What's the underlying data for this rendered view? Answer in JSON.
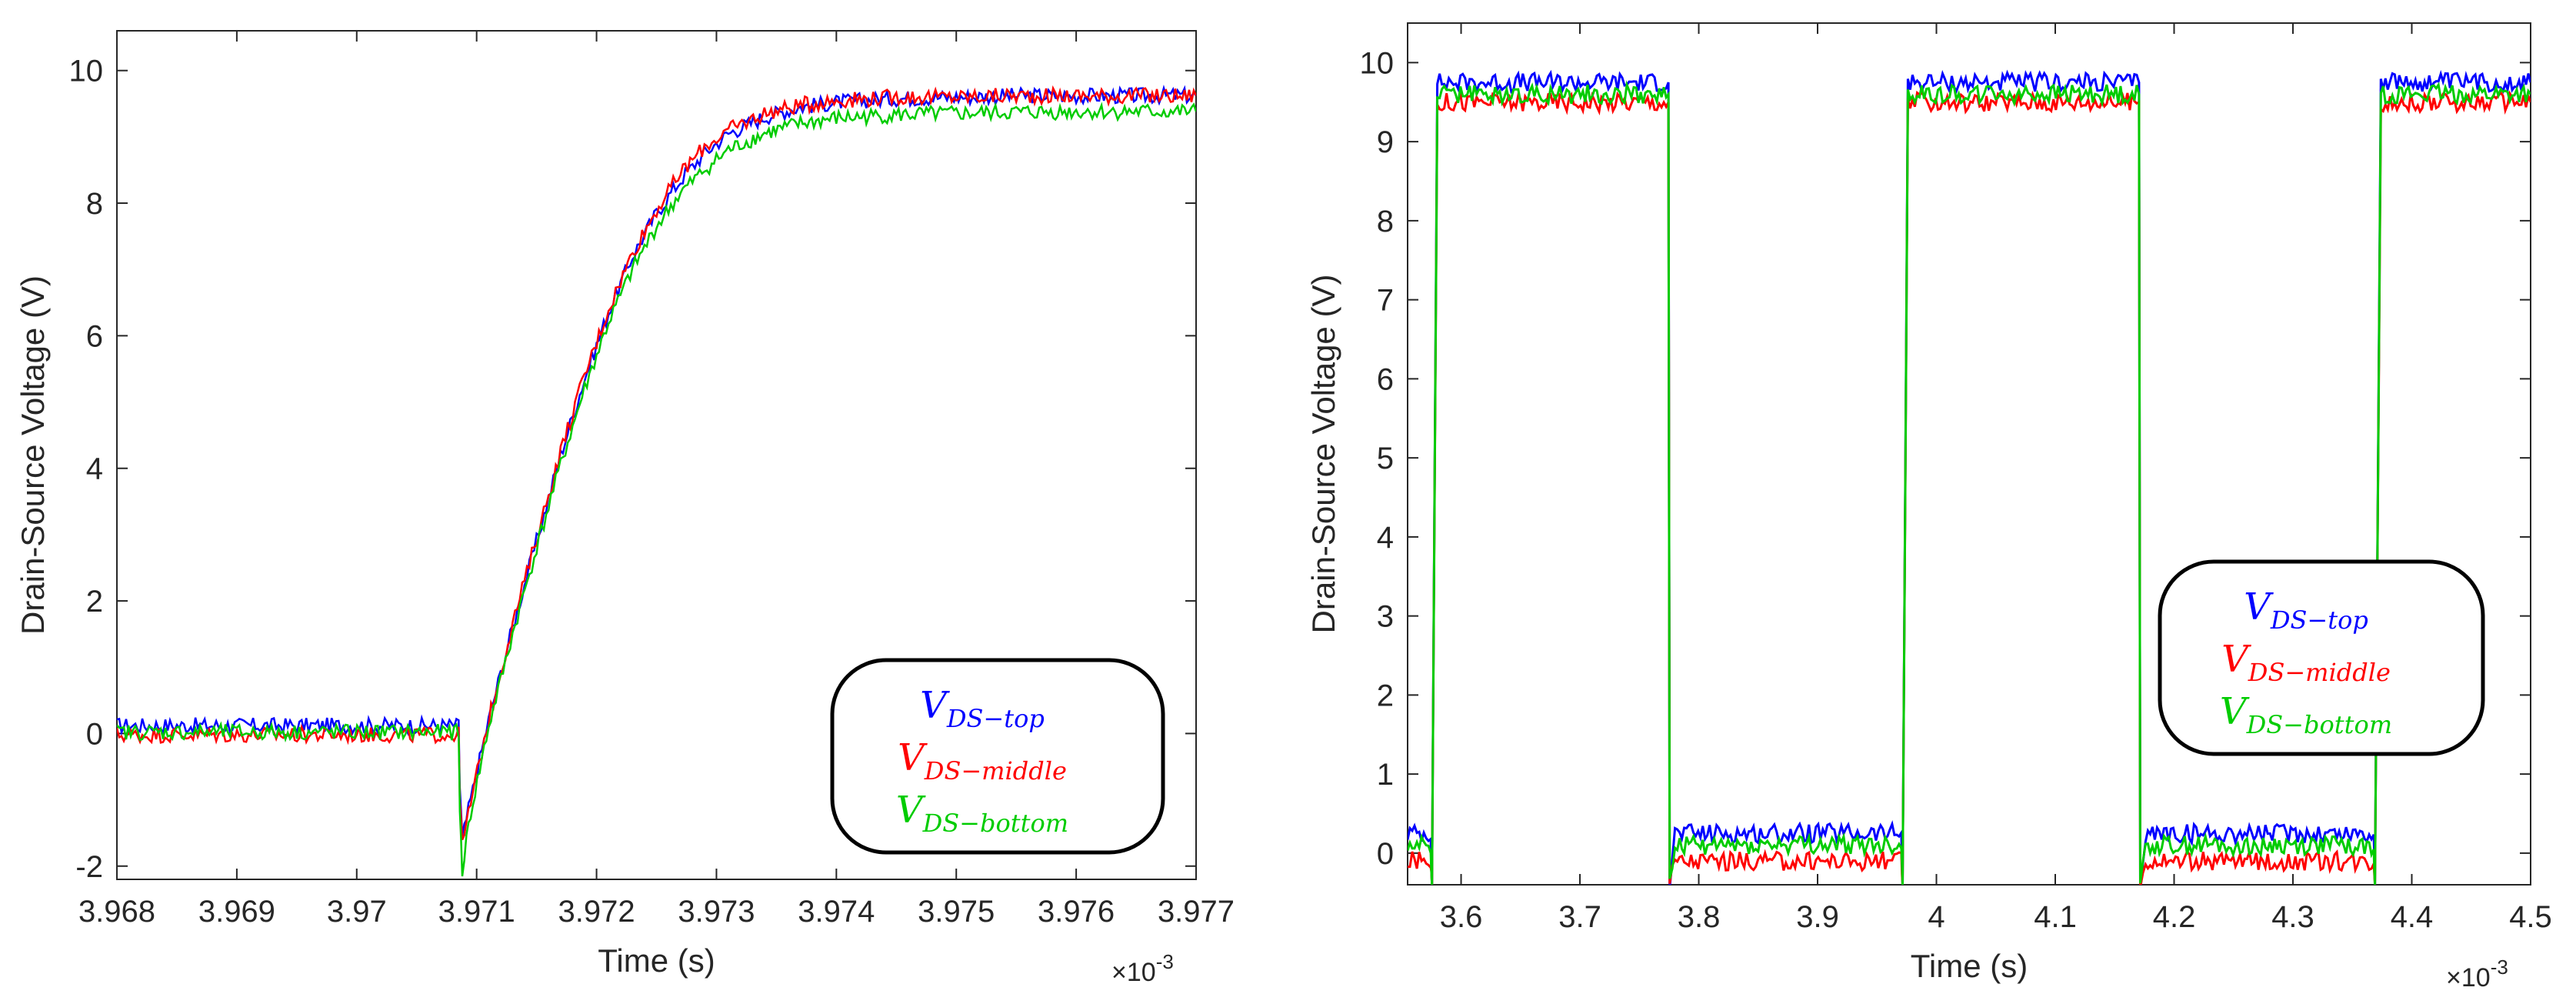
{
  "chart_data": [
    {
      "type": "line",
      "title": "",
      "xlabel": "Time (s)",
      "ylabel": "Drain-Source Voltage (V)",
      "x_exponent_label": "×10",
      "x_exponent_power": "-3",
      "xlim": [
        3.968,
        3.977
      ],
      "ylim": [
        -2.2,
        10.6
      ],
      "xticks": [
        3.968,
        3.969,
        3.97,
        3.971,
        3.972,
        3.973,
        3.974,
        3.975,
        3.976,
        3.977
      ],
      "xtick_labels": [
        "3.968",
        "3.969",
        "3.97",
        "3.971",
        "3.972",
        "3.973",
        "3.974",
        "3.975",
        "3.976",
        "3.977"
      ],
      "yticks": [
        -2,
        0,
        2,
        4,
        6,
        8,
        10
      ],
      "ytick_labels": [
        "-2",
        "0",
        "2",
        "4",
        "6",
        "8",
        "10"
      ],
      "series": [
        {
          "name": "V_DS-top",
          "color": "#0000ff",
          "x": [
            3.968,
            3.97085,
            3.97086,
            3.97088,
            3.97095,
            3.9711,
            3.9713,
            3.9715,
            3.9717,
            3.9719,
            3.9721,
            3.9723,
            3.9725,
            3.9727,
            3.9729,
            3.9731,
            3.9734,
            3.9737,
            3.974,
            3.9745,
            3.975,
            3.9755,
            3.976,
            3.977
          ],
          "values": [
            0.12,
            0.12,
            -0.8,
            -1.6,
            -1.0,
            0.2,
            1.6,
            2.9,
            4.2,
            5.35,
            6.35,
            7.2,
            7.85,
            8.35,
            8.75,
            9.05,
            9.3,
            9.45,
            9.52,
            9.58,
            9.6,
            9.62,
            9.62,
            9.62
          ]
        },
        {
          "name": "V_DS-middle",
          "color": "#ff0000",
          "x": [
            3.968,
            3.97085,
            3.97086,
            3.97088,
            3.97095,
            3.9711,
            3.9713,
            3.9715,
            3.9717,
            3.9719,
            3.9721,
            3.9723,
            3.9725,
            3.9727,
            3.9729,
            3.9731,
            3.9734,
            3.9737,
            3.974,
            3.9745,
            3.975,
            3.9755,
            3.976,
            3.977
          ],
          "values": [
            -0.02,
            -0.02,
            -0.9,
            -1.7,
            -1.05,
            0.2,
            1.65,
            2.95,
            4.25,
            5.4,
            6.4,
            7.25,
            7.9,
            8.45,
            8.85,
            9.1,
            9.35,
            9.48,
            9.55,
            9.6,
            9.6,
            9.62,
            9.62,
            9.62
          ]
        },
        {
          "name": "V_DS-bottom",
          "color": "#00cc00",
          "x": [
            3.968,
            3.97085,
            3.97086,
            3.97088,
            3.97095,
            3.9711,
            3.9713,
            3.9715,
            3.9717,
            3.9719,
            3.9721,
            3.9723,
            3.9725,
            3.9727,
            3.9729,
            3.9731,
            3.9734,
            3.9737,
            3.974,
            3.9745,
            3.975,
            3.9755,
            3.976,
            3.977
          ],
          "values": [
            0.02,
            0.02,
            -1.2,
            -2.05,
            -1.2,
            0.1,
            1.5,
            2.8,
            4.05,
            5.2,
            6.2,
            7.0,
            7.65,
            8.15,
            8.5,
            8.8,
            9.05,
            9.2,
            9.28,
            9.33,
            9.35,
            9.37,
            9.38,
            9.38
          ]
        }
      ],
      "legend": {
        "position": "bottom-right",
        "entries": [
          {
            "main": "V",
            "sub": "DS−top",
            "color": "#0000ff"
          },
          {
            "main": "V",
            "sub": "DS−middle",
            "color": "#ff0000"
          },
          {
            "main": "V",
            "sub": "DS−bottom",
            "color": "#00cc00"
          }
        ]
      }
    },
    {
      "type": "line",
      "title": "",
      "xlabel": "Time (s)",
      "ylabel": "Drain-Source Voltage (V)",
      "x_exponent_label": "×10",
      "x_exponent_power": "-3",
      "xlim": [
        3.555,
        4.5
      ],
      "ylim": [
        -0.4,
        10.5
      ],
      "xticks": [
        3.6,
        3.7,
        3.8,
        3.9,
        4.0,
        4.1,
        4.2,
        4.3,
        4.4,
        4.5
      ],
      "xtick_labels": [
        "3.6",
        "3.7",
        "3.8",
        "3.9",
        "4",
        "4.1",
        "4.2",
        "4.3",
        "4.4",
        "4.5"
      ],
      "yticks": [
        0,
        1,
        2,
        3,
        4,
        5,
        6,
        7,
        8,
        9,
        10
      ],
      "ytick_labels": [
        "0",
        "1",
        "2",
        "3",
        "4",
        "5",
        "6",
        "7",
        "8",
        "9",
        "10"
      ],
      "series": [
        {
          "name": "V_DS-top",
          "color": "#0000ff",
          "x": [
            3.555,
            3.5745,
            3.5755,
            3.58,
            3.7745,
            3.7755,
            3.78,
            3.9705,
            3.9715,
            3.976,
            4.1705,
            4.1715,
            4.176,
            4.368,
            4.369,
            4.374,
            4.5
          ],
          "values": [
            0.25,
            0.25,
            -0.4,
            9.75,
            9.75,
            -0.4,
            0.25,
            0.25,
            -0.4,
            9.75,
            9.75,
            -0.4,
            0.25,
            0.25,
            -0.4,
            9.75,
            9.75
          ]
        },
        {
          "name": "V_DS-middle",
          "color": "#ff0000",
          "x": [
            3.555,
            3.5745,
            3.5755,
            3.58,
            3.7745,
            3.7755,
            3.78,
            3.9705,
            3.9715,
            3.976,
            4.1705,
            4.1715,
            4.176,
            4.368,
            4.369,
            4.374,
            4.5
          ],
          "values": [
            -0.1,
            -0.1,
            -0.4,
            9.5,
            9.5,
            -0.4,
            -0.1,
            -0.1,
            -0.4,
            9.5,
            9.5,
            -0.4,
            -0.1,
            -0.1,
            -0.4,
            9.5,
            9.5
          ]
        },
        {
          "name": "V_DS-bottom",
          "color": "#00cc00",
          "x": [
            3.555,
            3.5745,
            3.5755,
            3.58,
            3.7745,
            3.7755,
            3.78,
            3.9705,
            3.9715,
            3.976,
            4.1705,
            4.1715,
            4.176,
            4.368,
            4.369,
            4.374,
            4.5
          ],
          "values": [
            0.1,
            0.1,
            -0.4,
            9.6,
            9.6,
            -0.4,
            0.1,
            0.1,
            -0.4,
            9.6,
            9.6,
            -0.4,
            0.1,
            0.1,
            -0.4,
            9.6,
            9.6
          ]
        }
      ],
      "legend": {
        "position": "center-right",
        "entries": [
          {
            "main": "V",
            "sub": "DS−top",
            "color": "#0000ff"
          },
          {
            "main": "V",
            "sub": "DS−middle",
            "color": "#ff0000"
          },
          {
            "main": "V",
            "sub": "DS−bottom",
            "color": "#00cc00"
          }
        ]
      }
    }
  ]
}
